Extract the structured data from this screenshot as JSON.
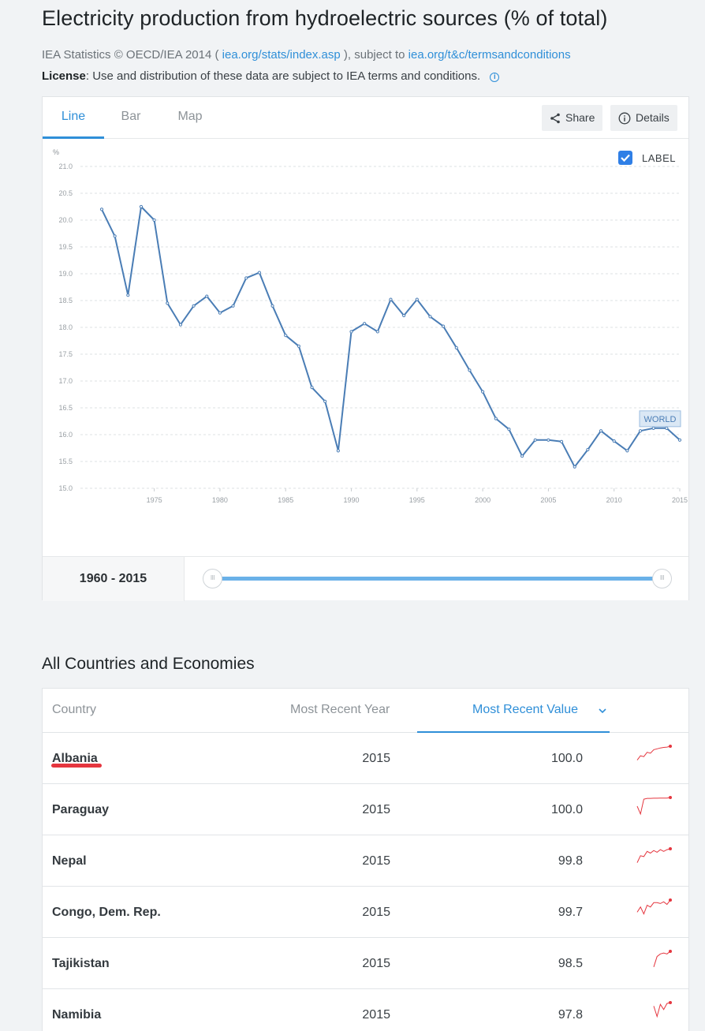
{
  "header": {
    "title": "Electricity production from hydroelectric sources (% of total)",
    "source_prefix": "IEA Statistics © OECD/IEA 2014 (",
    "source_link1": "iea.org/stats/index.asp",
    "source_middle": "), subject to",
    "source_link2": "iea.org/t&c/termsandconditions",
    "license_label": "License",
    "license_text": ": Use and distribution of these data are subject to IEA terms and conditions.",
    "info_icon": "i"
  },
  "tabs": [
    {
      "label": "Line",
      "active": true
    },
    {
      "label": "Bar",
      "active": false
    },
    {
      "label": "Map",
      "active": false
    }
  ],
  "toolbar": {
    "share_label": "Share",
    "details_label": "Details",
    "share_icon": "share-icon",
    "details_icon": "info-icon"
  },
  "label_toggle": {
    "text": "LABEL",
    "checked": true
  },
  "chart_data": {
    "type": "line",
    "ylabel": "%",
    "ylim": [
      15.0,
      21.0
    ],
    "yticks": [
      "21.0",
      "20.5",
      "20.0",
      "19.5",
      "19.0",
      "18.5",
      "18.0",
      "17.5",
      "17.0",
      "16.5",
      "16.0",
      "15.5",
      "15.0"
    ],
    "xlim": [
      1971,
      2015
    ],
    "xticks": [
      1975,
      1980,
      1985,
      1990,
      1995,
      2000,
      2005,
      2010,
      2015
    ],
    "grid": true,
    "series": [
      {
        "name": "WORLD",
        "color": "#4a7db5",
        "x": [
          1971,
          1972,
          1973,
          1974,
          1975,
          1976,
          1977,
          1978,
          1979,
          1980,
          1981,
          1982,
          1983,
          1984,
          1985,
          1986,
          1987,
          1988,
          1989,
          1990,
          1991,
          1992,
          1993,
          1994,
          1995,
          1996,
          1997,
          1998,
          1999,
          2000,
          2001,
          2002,
          2003,
          2004,
          2005,
          2006,
          2007,
          2008,
          2009,
          2010,
          2011,
          2012,
          2013,
          2014,
          2015
        ],
        "y": [
          20.2,
          19.7,
          18.6,
          20.25,
          20.0,
          18.45,
          18.05,
          18.4,
          18.58,
          18.27,
          18.4,
          18.92,
          19.02,
          18.4,
          17.85,
          17.65,
          16.88,
          16.62,
          15.7,
          17.92,
          18.07,
          17.92,
          18.52,
          18.22,
          18.52,
          18.2,
          18.02,
          17.62,
          17.2,
          16.8,
          16.3,
          16.1,
          15.6,
          15.9,
          15.9,
          15.87,
          15.4,
          15.72,
          16.07,
          15.88,
          15.7,
          16.07,
          16.12,
          16.12,
          15.9
        ]
      }
    ]
  },
  "range": {
    "label": "1960 - 2015",
    "handle_glyph": "III"
  },
  "table": {
    "section_title": "All Countries and Economies",
    "headers": {
      "country": "Country",
      "year": "Most Recent Year",
      "value": "Most Recent Value"
    },
    "sort_color": "#2f8fd8",
    "spark_color": "#e5363f",
    "rows": [
      {
        "country": "Albania",
        "year": "2015",
        "value": "100.0",
        "spark": [
          0.2,
          0.45,
          0.4,
          0.65,
          0.6,
          0.8,
          0.85,
          0.9,
          0.93,
          0.95,
          1.0
        ]
      },
      {
        "country": "Paraguay",
        "year": "2015",
        "value": "100.0",
        "spark": [
          0.5,
          0.05,
          0.9,
          0.95,
          0.95,
          0.96,
          0.96,
          0.97,
          0.97,
          0.97,
          1.0
        ]
      },
      {
        "country": "Nepal",
        "year": "2015",
        "value": "99.8",
        "spark": [
          0.2,
          0.6,
          0.55,
          0.85,
          0.75,
          0.9,
          0.8,
          0.95,
          0.85,
          0.95,
          1.0
        ]
      },
      {
        "country": "Congo, Dem. Rep.",
        "year": "2015",
        "value": "99.7",
        "spark": [
          0.3,
          0.6,
          0.2,
          0.7,
          0.6,
          0.85,
          0.85,
          0.8,
          0.9,
          0.75,
          1.0
        ]
      },
      {
        "country": "Tajikistan",
        "year": "2015",
        "value": "98.5",
        "spark": [
          null,
          null,
          null,
          null,
          null,
          0.1,
          0.7,
          0.85,
          0.9,
          0.85,
          1.0
        ]
      },
      {
        "country": "Namibia",
        "year": "2015",
        "value": "97.8",
        "spark": [
          null,
          null,
          null,
          null,
          null,
          0.8,
          0.2,
          0.9,
          0.6,
          0.95,
          1.0
        ]
      }
    ]
  }
}
